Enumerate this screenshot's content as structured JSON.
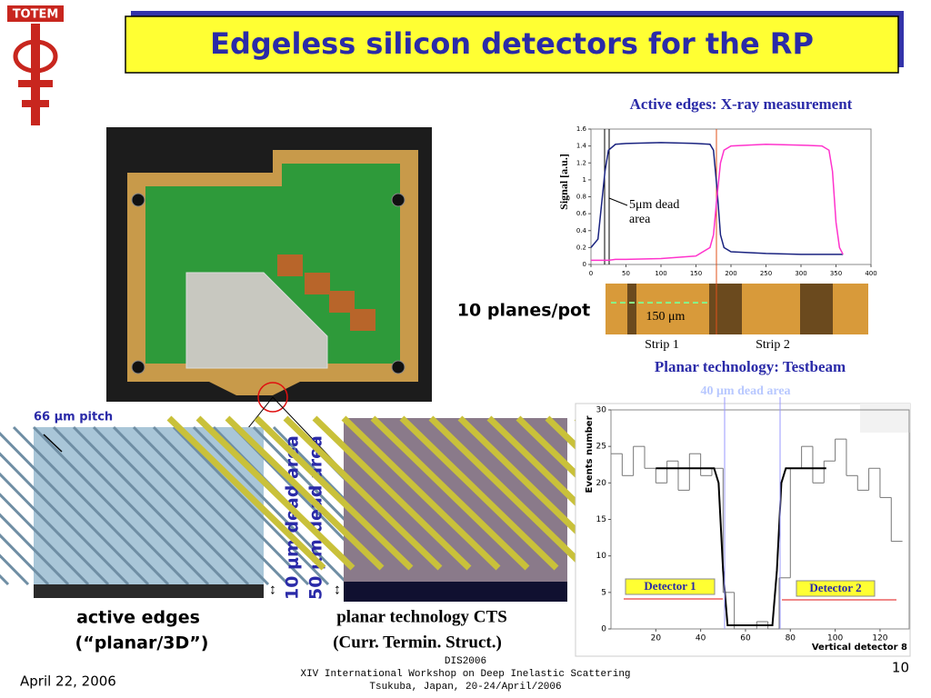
{
  "logo": "TOTEM",
  "title": "Edgeless silicon detectors for the RP",
  "planes_label": "10 planes/pot",
  "pitch_label": "66 μm pitch",
  "dead_area_10": "10 μm dead area",
  "dead_area_50": "50 μm dead area",
  "active_edges": [
    "active edges",
    "(“planar/3D”)"
  ],
  "planar_cts": [
    "planar technology  CTS",
    "(Curr. Termin. Struct.)"
  ],
  "strip_scale": "150 μm",
  "strips": [
    "Strip 1",
    "Strip 2"
  ],
  "testbeam_heading": "Planar technology: Testbeam",
  "footer": [
    "DIS2006",
    "XIV International Workshop on Deep Inelastic Scattering",
    "Tsukuba, Japan, 20-24/April/2006"
  ],
  "date": "April 22, 2006",
  "page_number": "10",
  "chart_data": [
    {
      "type": "line",
      "title": "Active edges: X-ray measurement",
      "ylabel": "Signal [a.u.]",
      "annotation": "5μm dead area",
      "x": [
        0,
        10,
        20,
        25,
        35,
        50,
        100,
        150,
        170,
        175,
        180,
        185,
        190,
        200,
        250,
        300,
        330,
        340,
        345,
        350,
        355,
        360
      ],
      "series": [
        {
          "name": "Strip 1",
          "color": "#1a2380",
          "values": [
            0.2,
            0.3,
            1.1,
            1.35,
            1.42,
            1.43,
            1.44,
            1.43,
            1.42,
            1.35,
            0.9,
            0.35,
            0.2,
            0.15,
            0.13,
            0.12,
            0.12,
            0.12,
            0.12,
            0.12,
            0.12,
            0.12
          ]
        },
        {
          "name": "Strip 2",
          "color": "#ff33cc",
          "values": [
            0.05,
            0.05,
            0.05,
            0.05,
            0.06,
            0.06,
            0.07,
            0.1,
            0.2,
            0.35,
            0.8,
            1.2,
            1.35,
            1.4,
            1.42,
            1.41,
            1.4,
            1.35,
            1.1,
            0.5,
            0.2,
            0.12
          ]
        }
      ],
      "xlim": [
        0,
        400
      ],
      "ylim": [
        0,
        1.6
      ],
      "xticks": [
        0,
        50,
        100,
        150,
        200,
        250,
        300,
        350,
        400
      ],
      "yticks": [
        0,
        0.2,
        0.4,
        0.6,
        0.8,
        1,
        1.2,
        1.4,
        1.6
      ]
    },
    {
      "type": "histogram",
      "annotation": "40 μm dead area",
      "detectors": [
        "Detector 1",
        "Detector 2"
      ],
      "ylabel": "Events number",
      "xlabel": "Vertical detector 8",
      "bins": [
        0,
        5,
        10,
        15,
        20,
        25,
        30,
        35,
        40,
        45,
        50,
        55,
        60,
        65,
        70,
        75,
        80,
        85,
        90,
        95,
        100,
        105,
        110,
        115,
        120,
        125,
        130
      ],
      "values": [
        24,
        21,
        25,
        22,
        20,
        23,
        19,
        24,
        21,
        22,
        5,
        0,
        0,
        1,
        0,
        7,
        22,
        25,
        20,
        23,
        26,
        21,
        19,
        22,
        18,
        12
      ],
      "color": "#777777",
      "fit": {
        "color": "#000000",
        "x": [
          20,
          46,
          48,
          50,
          52,
          72,
          74,
          76,
          78,
          96
        ],
        "y": [
          22,
          22,
          20,
          8,
          0.5,
          0.5,
          8,
          20,
          22,
          22
        ]
      },
      "xlim": [
        0,
        133
      ],
      "ylim": [
        0,
        30
      ],
      "xticks": [
        20,
        40,
        60,
        80,
        100,
        120
      ],
      "yticks": [
        0,
        5,
        10,
        15,
        20,
        25,
        30
      ]
    }
  ]
}
